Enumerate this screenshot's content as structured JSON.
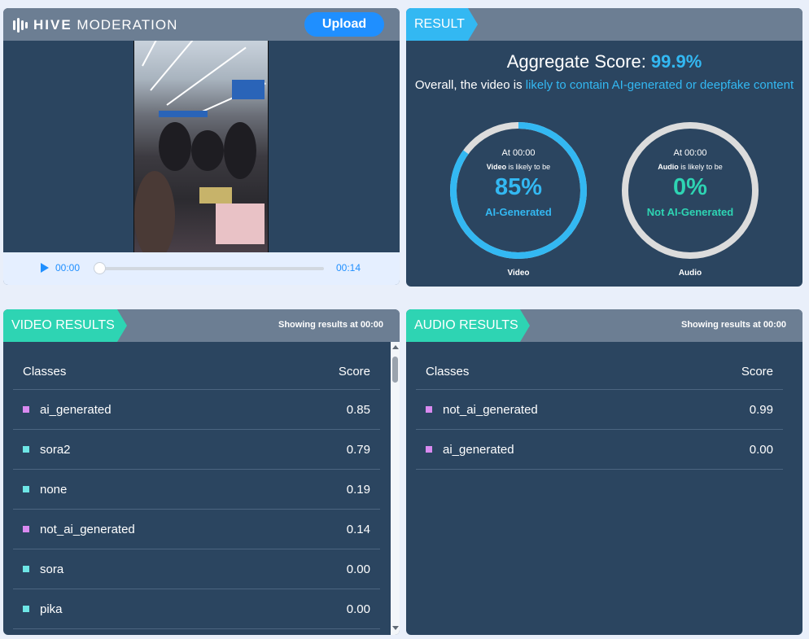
{
  "header": {
    "logo_bold": "HIVE",
    "logo_light": "MODERATION",
    "upload_label": "Upload"
  },
  "player": {
    "current_time": "00:00",
    "duration": "00:14",
    "progress": 0
  },
  "result": {
    "tag": "RESULT",
    "aggregate_label": "Aggregate Score:",
    "aggregate_value": "99.9%",
    "overall_prefix": "Overall, the video is",
    "overall_highlight": "likely to contain AI-generated or deepfake content",
    "gauges": [
      {
        "at": "At 00:00",
        "modality": "Video",
        "likely": "is likely to be",
        "percent": "85%",
        "value": 0.85,
        "label": "AI-Generated",
        "caption": "Video",
        "color": "#33b8f2"
      },
      {
        "at": "At 00:00",
        "modality": "Audio",
        "likely": "is likely to be",
        "percent": "0%",
        "value": 0,
        "label": "Not AI-Generated",
        "caption": "Audio",
        "color": "#2ed4b3"
      }
    ]
  },
  "video_results": {
    "tag": "VIDEO RESULTS",
    "showing_prefix": "Showing results at",
    "showing_time": "00:00",
    "col_classes": "Classes",
    "col_score": "Score",
    "rows": [
      {
        "name": "ai_generated",
        "score": "0.85",
        "color": "#d98af0"
      },
      {
        "name": "sora2",
        "score": "0.79",
        "color": "#6ee6e6"
      },
      {
        "name": "none",
        "score": "0.19",
        "color": "#6ee6e6"
      },
      {
        "name": "not_ai_generated",
        "score": "0.14",
        "color": "#d98af0"
      },
      {
        "name": "sora",
        "score": "0.00",
        "color": "#6ee6e6"
      },
      {
        "name": "pika",
        "score": "0.00",
        "color": "#6ee6e6"
      }
    ]
  },
  "audio_results": {
    "tag": "AUDIO RESULTS",
    "showing_prefix": "Showing results at",
    "showing_time": "00:00",
    "col_classes": "Classes",
    "col_score": "Score",
    "rows": [
      {
        "name": "not_ai_generated",
        "score": "0.99",
        "color": "#d98af0"
      },
      {
        "name": "ai_generated",
        "score": "0.00",
        "color": "#d98af0"
      }
    ]
  }
}
